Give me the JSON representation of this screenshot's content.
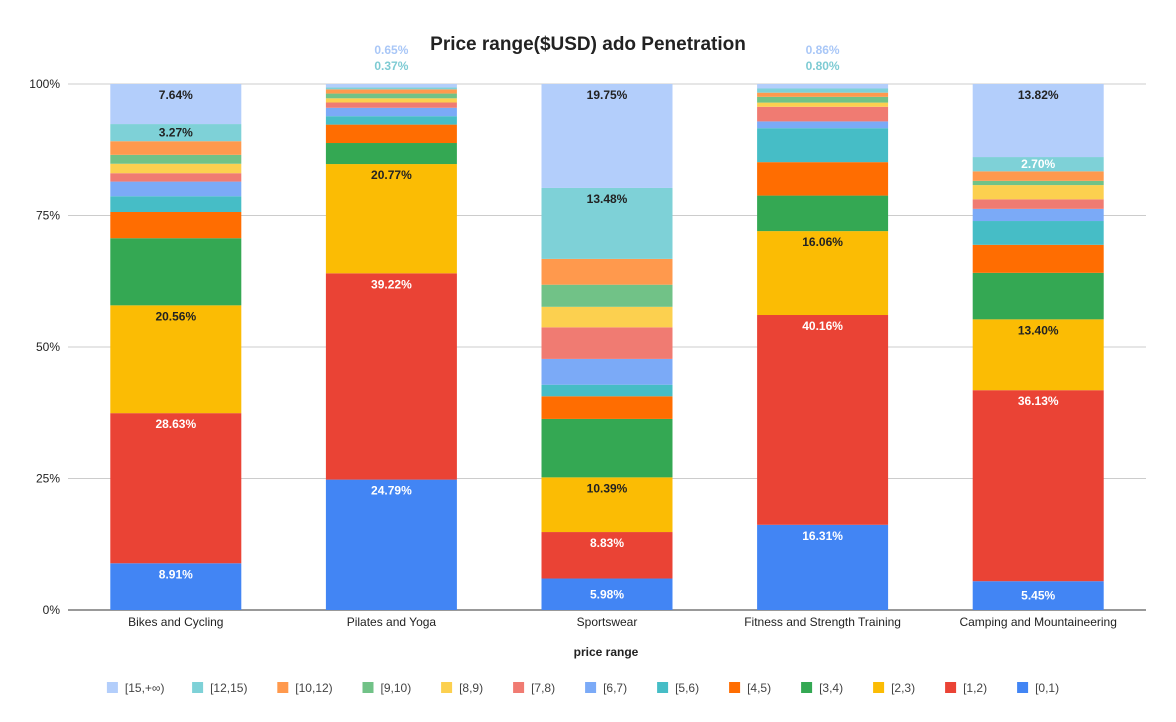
{
  "chart_data": {
    "type": "bar",
    "stacked": true,
    "normalized": true,
    "title": "Price range($USD) ado Penetration",
    "xlabel": "price range",
    "ylabel": "",
    "ylim": [
      0,
      100
    ],
    "yticks": [
      "0%",
      "25%",
      "50%",
      "75%",
      "100%"
    ],
    "grid": true,
    "legend_position": "bottom",
    "categories": [
      "Bikes and Cycling",
      "Pilates and Yoga",
      "Sportswear",
      "Fitness and Strength Training",
      "Camping and Mountaineering"
    ],
    "series": [
      {
        "name": "[0,1)",
        "color": "#4285f4",
        "values": [
          8.91,
          24.79,
          5.98,
          16.31,
          5.45
        ],
        "labels": [
          "8.91%",
          "24.79%",
          "5.98%",
          "16.31%",
          "5.45%"
        ]
      },
      {
        "name": "[1,2)",
        "color": "#ea4335",
        "values": [
          28.63,
          39.22,
          8.83,
          40.16,
          36.13
        ],
        "labels": [
          "28.63%",
          "39.22%",
          "8.83%",
          "40.16%",
          "36.13%"
        ]
      },
      {
        "name": "[2,3)",
        "color": "#fbbc04",
        "values": [
          20.56,
          20.77,
          10.39,
          16.06,
          13.4
        ],
        "labels": [
          "20.56%",
          "20.77%",
          "10.39%",
          "16.06%",
          "13.40%"
        ]
      },
      {
        "name": "[3,4)",
        "color": "#34a853",
        "values": [
          12.8,
          4.0,
          11.1,
          6.8,
          8.8
        ],
        "labels": [
          "",
          "",
          "",
          "",
          ""
        ]
      },
      {
        "name": "[4,5)",
        "color": "#ff6d01",
        "values": [
          5.0,
          3.5,
          4.3,
          6.4,
          5.3
        ],
        "labels": [
          "",
          "",
          "",
          "",
          ""
        ]
      },
      {
        "name": "[5,6)",
        "color": "#46bdc6",
        "values": [
          3.0,
          1.6,
          2.2,
          6.5,
          4.5
        ],
        "labels": [
          "",
          "",
          "",
          "",
          ""
        ]
      },
      {
        "name": "[6,7)",
        "color": "#7baaf7",
        "values": [
          2.8,
          1.6,
          4.9,
          1.3,
          2.3
        ],
        "labels": [
          "",
          "",
          "",
          "",
          ""
        ]
      },
      {
        "name": "[7,8)",
        "color": "#f07b72",
        "values": [
          1.6,
          1.0,
          6.0,
          2.8,
          1.8
        ],
        "labels": [
          "",
          "",
          "",
          "",
          ""
        ]
      },
      {
        "name": "[8,9)",
        "color": "#fcd04f",
        "values": [
          1.8,
          0.8,
          3.9,
          0.8,
          2.7
        ],
        "labels": [
          "",
          "",
          "",
          "",
          ""
        ]
      },
      {
        "name": "[9,10)",
        "color": "#71c287",
        "values": [
          1.7,
          0.9,
          4.2,
          1.1,
          0.8
        ],
        "labels": [
          "",
          "",
          "",
          "",
          ""
        ]
      },
      {
        "name": "[10,12)",
        "color": "#ff994d",
        "values": [
          2.6,
          0.8,
          4.9,
          0.8,
          1.8
        ],
        "labels": [
          "",
          "",
          "",
          "",
          ""
        ]
      },
      {
        "name": "[12,15)",
        "color": "#7ed1d7",
        "values": [
          3.27,
          0.37,
          13.48,
          0.8,
          2.7
        ],
        "labels": [
          "3.27%",
          "0.37%",
          "13.48%",
          "0.80%",
          "2.70%"
        ]
      },
      {
        "name": "[15,+∞)",
        "color": "#b3cefb",
        "values": [
          7.64,
          0.65,
          19.75,
          0.86,
          13.82
        ],
        "labels": [
          "7.64%",
          "0.65%",
          "19.75%",
          "0.86%",
          "13.82%"
        ]
      }
    ]
  }
}
